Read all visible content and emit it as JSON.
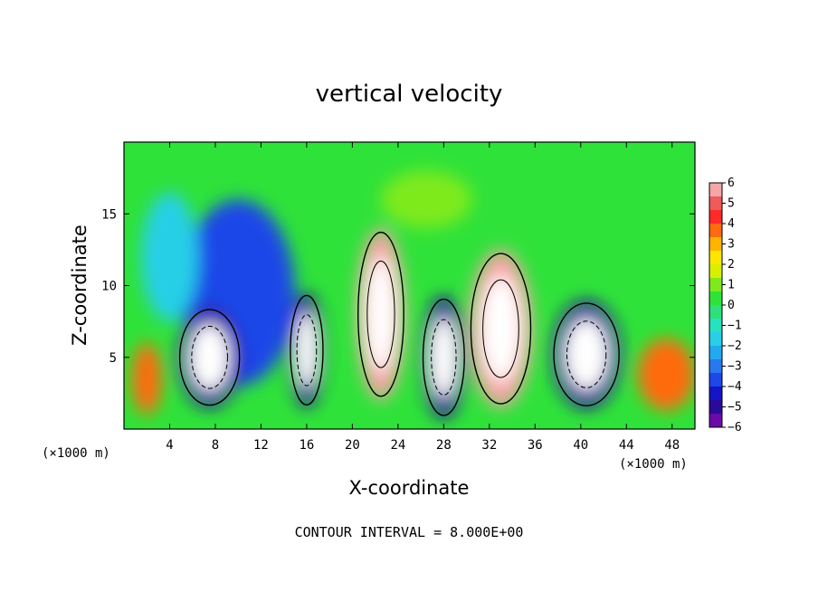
{
  "chart_data": {
    "type": "heatmap",
    "title": "vertical velocity",
    "xlabel": "X-coordinate",
    "ylabel": "Z-coordinate",
    "x_scale_label_left": "(×1000 m)",
    "x_scale_label_right": "(×1000 m)",
    "xlim": [
      0,
      50
    ],
    "ylim": [
      0,
      20
    ],
    "x_ticks": [
      4,
      8,
      12,
      16,
      20,
      24,
      28,
      32,
      36,
      40,
      44,
      48
    ],
    "y_ticks": [
      5,
      10,
      15
    ],
    "colorbar": {
      "min": -6,
      "max": 6,
      "ticks": [
        "6",
        "5",
        "4",
        "3",
        "2",
        "1",
        "0",
        "−1",
        "−2",
        "−3",
        "−4",
        "−5",
        "−6"
      ],
      "colors": [
        "#f6a6a6",
        "#ef5a5a",
        "#ff2a2a",
        "#ff6a10",
        "#ffb400",
        "#ffe600",
        "#d8f000",
        "#7eea1e",
        "#2fe23a",
        "#2ee07a",
        "#26e2be",
        "#28cfe6",
        "#22aaf0",
        "#2a78f0",
        "#1e46e8",
        "#1414c8",
        "#2a0a9a",
        "#6a0aa8"
      ]
    },
    "cells": [
      {
        "x": 22.5,
        "z": 8.0,
        "w": 4.2,
        "h": 12.0,
        "value": 6
      },
      {
        "x": 33.0,
        "z": 7.0,
        "w": 5.5,
        "h": 11.0,
        "value": 6
      },
      {
        "x": 2.0,
        "z": 3.5,
        "w": 2.6,
        "h": 5.0,
        "value": 4
      },
      {
        "x": 47.5,
        "z": 3.8,
        "w": 5.0,
        "h": 5.0,
        "value": 4
      },
      {
        "x": 10.0,
        "z": 9.5,
        "w": 10.0,
        "h": 13.0,
        "value": -4
      },
      {
        "x": 7.5,
        "z": 5.0,
        "w": 5.5,
        "h": 7.0,
        "value": -5
      },
      {
        "x": 16.0,
        "z": 5.5,
        "w": 3.0,
        "h": 8.0,
        "value": -5
      },
      {
        "x": 28.0,
        "z": 5.0,
        "w": 3.8,
        "h": 8.5,
        "value": -5
      },
      {
        "x": 40.5,
        "z": 5.2,
        "w": 6.0,
        "h": 7.5,
        "value": -5
      },
      {
        "x": 4.0,
        "z": 12.0,
        "w": 5.0,
        "h": 9.0,
        "value": -2
      },
      {
        "x": 26.5,
        "z": 16.0,
        "w": 8.0,
        "h": 4.0,
        "value": 1
      }
    ],
    "contour_interval": "CONTOUR INTERVAL = 8.000E+00",
    "grid": false,
    "legend": "colorbar right"
  }
}
